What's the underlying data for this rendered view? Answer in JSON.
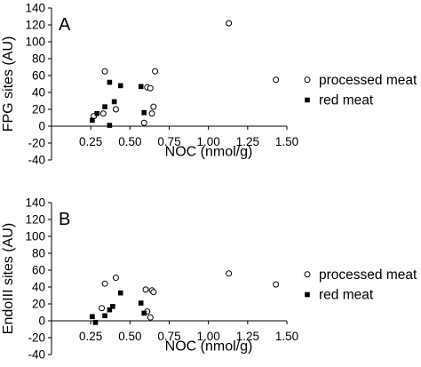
{
  "chart_data": [
    {
      "type": "scatter",
      "panel_label": "A",
      "xlabel": "NOC (nmol/g)",
      "ylabel": "FPG sites (AU)",
      "xlim": [
        0,
        1.5
      ],
      "ylim": [
        -40,
        140
      ],
      "x_ticks": [
        "0.25",
        "0.50",
        "0.75",
        "1.00",
        "1.25",
        "1.50"
      ],
      "y_ticks": [
        "140",
        "120",
        "100",
        "80",
        "60",
        "40",
        "20",
        "0",
        "-20",
        "-40"
      ],
      "grid": false,
      "legend_position": "right",
      "series": [
        {
          "name": "processed meat",
          "marker": "open-circle",
          "points": [
            [
              0.27,
              12
            ],
            [
              0.33,
              15
            ],
            [
              0.34,
              65
            ],
            [
              0.41,
              20
            ],
            [
              0.59,
              4
            ],
            [
              0.61,
              46
            ],
            [
              0.63,
              45
            ],
            [
              0.64,
              15
            ],
            [
              0.65,
              23
            ],
            [
              0.66,
              65
            ],
            [
              1.13,
              122
            ],
            [
              1.43,
              55
            ]
          ]
        },
        {
          "name": "red meat",
          "marker": "filled-square",
          "points": [
            [
              0.26,
              7
            ],
            [
              0.29,
              15
            ],
            [
              0.34,
              23
            ],
            [
              0.37,
              1
            ],
            [
              0.37,
              52
            ],
            [
              0.4,
              29
            ],
            [
              0.44,
              48
            ],
            [
              0.57,
              47
            ],
            [
              0.59,
              16
            ]
          ]
        }
      ]
    },
    {
      "type": "scatter",
      "panel_label": "B",
      "xlabel": "NOC (nmol/g)",
      "ylabel": "EndoIII sites (AU)",
      "xlim": [
        0,
        1.5
      ],
      "ylim": [
        -40,
        140
      ],
      "x_ticks": [
        "0.25",
        "0.50",
        "0.75",
        "1.00",
        "1.25",
        "1.50"
      ],
      "y_ticks": [
        "140",
        "120",
        "100",
        "80",
        "60",
        "40",
        "20",
        "0",
        "-20",
        "-40"
      ],
      "grid": false,
      "legend_position": "right",
      "series": [
        {
          "name": "processed meat",
          "marker": "open-circle",
          "points": [
            [
              0.32,
              15
            ],
            [
              0.34,
              44
            ],
            [
              0.41,
              51
            ],
            [
              0.6,
              37
            ],
            [
              0.61,
              11
            ],
            [
              0.63,
              4
            ],
            [
              0.64,
              36
            ],
            [
              0.65,
              34
            ],
            [
              1.13,
              56
            ],
            [
              1.43,
              43
            ]
          ]
        },
        {
          "name": "red meat",
          "marker": "filled-square",
          "points": [
            [
              0.26,
              5
            ],
            [
              0.28,
              -2
            ],
            [
              0.34,
              6
            ],
            [
              0.37,
              13
            ],
            [
              0.39,
              17
            ],
            [
              0.44,
              33
            ],
            [
              0.57,
              21
            ],
            [
              0.59,
              9
            ]
          ]
        }
      ]
    }
  ]
}
